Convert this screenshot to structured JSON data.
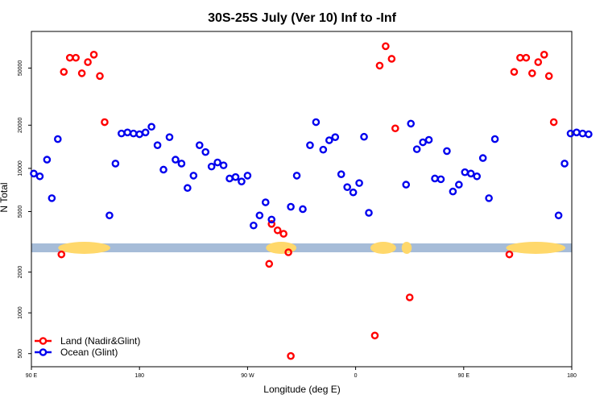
{
  "chart_data": {
    "type": "scatter",
    "title": "30S-25S July (Ver 10)   Inf to -Inf",
    "xlabel": "Longitude (deg E)",
    "ylabel": "N Total",
    "x_axis": {
      "scale": "longitude east 90E..180",
      "range_deg_east": [
        90,
        540
      ],
      "ticks": [
        {
          "value": 90,
          "label": "90 E"
        },
        {
          "value": 180,
          "label": "180"
        },
        {
          "value": 270,
          "label": "90 W"
        },
        {
          "value": 360,
          "label": "0"
        },
        {
          "value": 450,
          "label": "90 E"
        },
        {
          "value": 540,
          "label": "180"
        }
      ]
    },
    "y_axis": {
      "scale": "log, split panel",
      "upper_range": [
        3000,
        90000
      ],
      "lower_range": [
        400,
        2800
      ],
      "ticks": [
        500,
        1000,
        2000,
        5000,
        10000,
        20000,
        50000
      ]
    },
    "land_mask": {
      "color_land": "#ffd86b",
      "color_ocean": "#a6bcd8",
      "land_segments_deg_east": [
        [
          115,
          153
        ],
        [
          288,
          308
        ],
        [
          375,
          391
        ],
        [
          401,
          404
        ],
        [
          488,
          532
        ]
      ]
    },
    "legend": {
      "position": "bottom-left",
      "entries": [
        {
          "label": "Land (Nadir&Glint)",
          "color": "#ff0000"
        },
        {
          "label": "Ocean (Glint)",
          "color": "#0000ee"
        }
      ]
    },
    "series": [
      {
        "name": "Land (Nadir&Glint)",
        "color": "#ff0000",
        "points": [
          [
            115,
            2700
          ],
          [
            117,
            47000
          ],
          [
            122,
            59000
          ],
          [
            127,
            59000
          ],
          [
            132,
            46000
          ],
          [
            137,
            55000
          ],
          [
            142,
            62000
          ],
          [
            147,
            44000
          ],
          [
            151,
            21000
          ],
          [
            288,
            2300
          ],
          [
            290,
            4100
          ],
          [
            295,
            3700
          ],
          [
            300,
            3500
          ],
          [
            304,
            2800
          ],
          [
            306,
            480
          ],
          [
            376,
            680
          ],
          [
            380,
            52000
          ],
          [
            385,
            71000
          ],
          [
            390,
            58000
          ],
          [
            393,
            19000
          ],
          [
            405,
            1300
          ],
          [
            488,
            2700
          ],
          [
            492,
            47000
          ],
          [
            497,
            59000
          ],
          [
            502,
            59000
          ],
          [
            507,
            46000
          ],
          [
            512,
            55000
          ],
          [
            517,
            62000
          ],
          [
            521,
            44000
          ],
          [
            525,
            21000
          ]
        ]
      },
      {
        "name": "Ocean (Glint)",
        "color": "#0000ee",
        "points": [
          [
            92,
            9200
          ],
          [
            97,
            8800
          ],
          [
            103,
            11500
          ],
          [
            107,
            6200
          ],
          [
            112,
            16000
          ],
          [
            155,
            4700
          ],
          [
            160,
            10800
          ],
          [
            165,
            17500
          ],
          [
            170,
            17800
          ],
          [
            175,
            17500
          ],
          [
            180,
            17300
          ],
          [
            185,
            17800
          ],
          [
            190,
            19500
          ],
          [
            195,
            14500
          ],
          [
            200,
            9800
          ],
          [
            205,
            16500
          ],
          [
            210,
            11500
          ],
          [
            215,
            10800
          ],
          [
            220,
            7300
          ],
          [
            225,
            8900
          ],
          [
            230,
            14500
          ],
          [
            235,
            13000
          ],
          [
            240,
            10300
          ],
          [
            245,
            11000
          ],
          [
            250,
            10500
          ],
          [
            255,
            8500
          ],
          [
            260,
            8700
          ],
          [
            265,
            8100
          ],
          [
            270,
            8900
          ],
          [
            275,
            4000
          ],
          [
            280,
            4700
          ],
          [
            285,
            5800
          ],
          [
            290,
            4400
          ],
          [
            306,
            5400
          ],
          [
            311,
            8900
          ],
          [
            316,
            5200
          ],
          [
            322,
            14500
          ],
          [
            327,
            21000
          ],
          [
            333,
            13500
          ],
          [
            338,
            15700
          ],
          [
            343,
            16500
          ],
          [
            348,
            9100
          ],
          [
            353,
            7400
          ],
          [
            358,
            6800
          ],
          [
            363,
            7900
          ],
          [
            367,
            16600
          ],
          [
            371,
            4900
          ],
          [
            402,
            7700
          ],
          [
            406,
            20500
          ],
          [
            411,
            13600
          ],
          [
            416,
            15200
          ],
          [
            421,
            15800
          ],
          [
            426,
            8500
          ],
          [
            431,
            8400
          ],
          [
            436,
            13200
          ],
          [
            441,
            6900
          ],
          [
            446,
            7700
          ],
          [
            451,
            9400
          ],
          [
            456,
            9200
          ],
          [
            461,
            8800
          ],
          [
            466,
            11800
          ],
          [
            471,
            6200
          ],
          [
            476,
            16000
          ],
          [
            529,
            4700
          ],
          [
            534,
            10800
          ],
          [
            539,
            17500
          ],
          [
            544,
            17800
          ],
          [
            549,
            17500
          ],
          [
            554,
            17300
          ]
        ]
      }
    ]
  }
}
